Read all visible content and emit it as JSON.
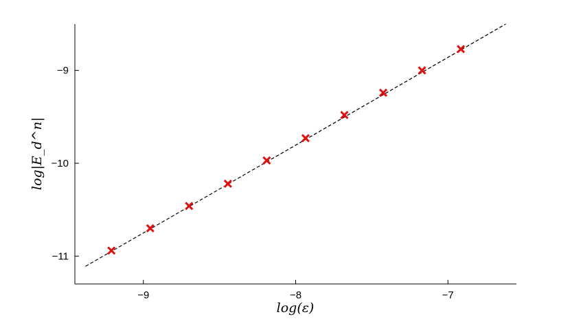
{
  "chart_data": {
    "type": "scatter",
    "xlabel": "log(ε)",
    "ylabel": "log|E_d^n|",
    "xlim": [
      -9.45,
      -6.55
    ],
    "ylim": [
      -11.3,
      -8.5
    ],
    "x_ticks": [
      -9,
      -8,
      -7
    ],
    "y_ticks": [
      -9,
      -10,
      -11
    ],
    "x_tick_labels": [
      "−9",
      "−8",
      "−7"
    ],
    "y_tick_labels": [
      "−9",
      "−10",
      "−11"
    ],
    "grid": false,
    "series": [
      {
        "marker": "x",
        "color": "#e01010",
        "x": [
          -9.21,
          -8.955,
          -8.7,
          -8.445,
          -8.19,
          -7.935,
          -7.68,
          -7.425,
          -7.17,
          -6.915
        ],
        "y": [
          -10.94,
          -10.7,
          -10.46,
          -10.22,
          -9.97,
          -9.73,
          -9.48,
          -9.24,
          -9.0,
          -8.77
        ]
      }
    ],
    "reference_line": {
      "style": "dashed",
      "color": "#000000",
      "x": [
        -9.38,
        -6.62
      ],
      "y": [
        -11.11,
        -8.5
      ]
    }
  }
}
